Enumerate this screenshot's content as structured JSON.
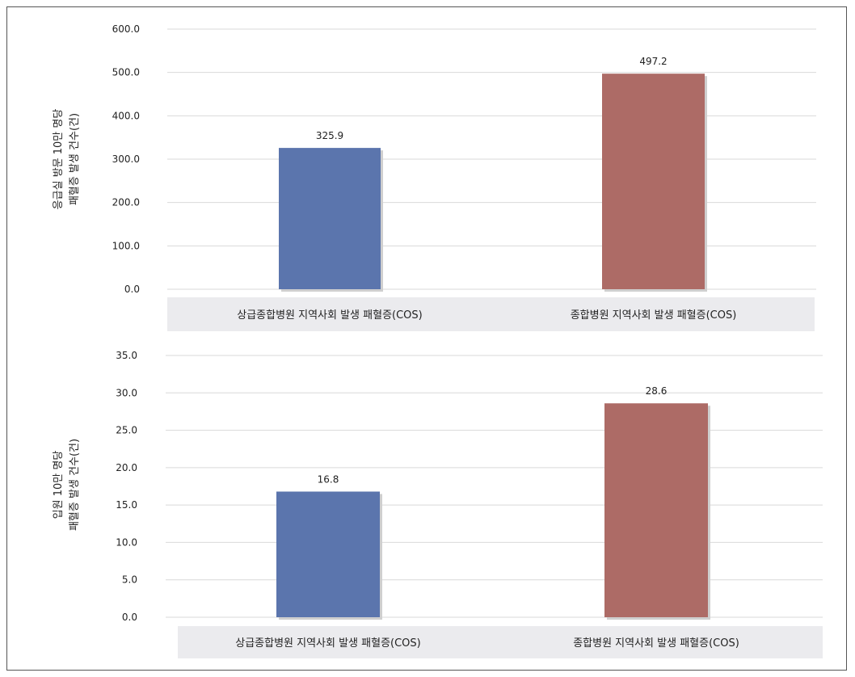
{
  "chart_data": [
    {
      "type": "bar",
      "categories": [
        "상급종합병원 지역사회 발생 패혈증(COS)",
        "종합병원 지역사회 발생 패혈증(COS)"
      ],
      "values": [
        325.9,
        497.2
      ],
      "value_labels": [
        "325.9",
        "497.2"
      ],
      "ylabel_lines": [
        "응급실 방문 10만 명당",
        "패혈증 발생 건수(건)"
      ],
      "ylim": [
        0,
        600
      ],
      "yticks": [
        "0.0",
        "100.0",
        "200.0",
        "300.0",
        "400.0",
        "500.0",
        "600.0"
      ],
      "grid": true,
      "colors": [
        "#5b75ad",
        "#ad6b66"
      ]
    },
    {
      "type": "bar",
      "categories": [
        "상급종합병원 지역사회 발생 패혈증(COS)",
        "종합병원 지역사회 발생 패혈증(COS)"
      ],
      "values": [
        16.8,
        28.6
      ],
      "value_labels": [
        "16.8",
        "28.6"
      ],
      "ylabel_lines": [
        "입원 10만 명당",
        "패혈증 발생 건수(건)"
      ],
      "ylim": [
        0,
        35
      ],
      "yticks": [
        "0.0",
        "5.0",
        "10.0",
        "15.0",
        "20.0",
        "25.0",
        "30.0",
        "35.0"
      ],
      "grid": true,
      "colors": [
        "#5b75ad",
        "#ad6b66"
      ]
    }
  ]
}
